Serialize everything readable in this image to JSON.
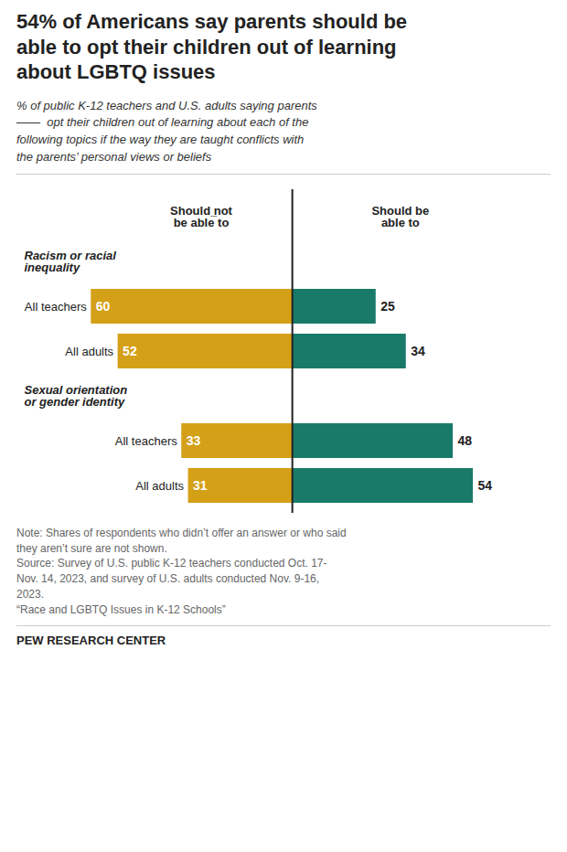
{
  "chart_data": {
    "type": "bar",
    "orientation": "horizontal",
    "title": "54% of Americans say parents should be\nable to opt their children out of learning\nabout LGBTQ issues",
    "subtitle": "% of public K-12 teachers and U.S. adults saying parents\n——  opt their children out of learning about each of the\nfollowing topics if the way they are taught conflicts with\nthe parents’ personal views or beliefs",
    "categories": [
      "All teachers",
      "All adults",
      "All teachers",
      "All adults"
    ],
    "groups": [
      "Racism or racial\ninequality",
      "Racism or racial\ninequality",
      "Sexual orientation\nor gender identity",
      "Sexual orientation\nor gender identity"
    ],
    "series": [
      {
        "name": "Should ̲not\nbe able to",
        "color": "#D4A017",
        "values": [
          60,
          52,
          33,
          31
        ]
      },
      {
        "name": "Should be\nable to",
        "color": "#1A7A6A",
        "values": [
          25,
          34,
          48,
          54
        ]
      }
    ],
    "xlim": [
      -80,
      75
    ],
    "data_labels": true,
    "tick_labels": false,
    "grid": false,
    "note": "Note: Shares of respondents who didn’t offer an answer or who said\nthey aren’t sure are not shown.\nSource: Survey of U.S. public K-12 teachers conducted Oct. 17-\nNov. 14, 2023, and survey of U.S. adults conducted Nov. 9-16,\n2023.\n“Race and LGBTQ Issues in K-12 Schools”",
    "branding": "PEW RESEARCH CENTER"
  }
}
